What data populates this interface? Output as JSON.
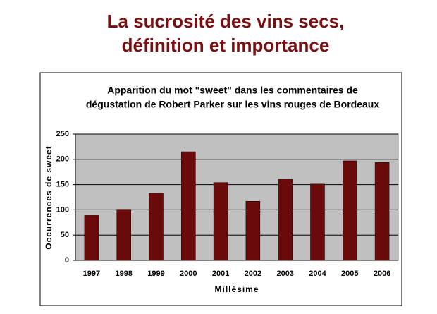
{
  "slide": {
    "title_lines": [
      "La sucrosité des vins secs,",
      "définition et importance"
    ]
  },
  "chart_data": {
    "type": "bar",
    "title": [
      "Apparition du mot \"sweet\" dans les commentaires de",
      "dégustation de Robert Parker sur les vins rouges de Bordeaux"
    ],
    "x_label": "Millésime",
    "y_label": "Occurrences de sweet",
    "categories": [
      "1997",
      "1998",
      "1999",
      "2000",
      "2001",
      "2002",
      "2003",
      "2004",
      "2005",
      "2006"
    ],
    "values": [
      90,
      101,
      133,
      215,
      154,
      117,
      161,
      151,
      197,
      194
    ],
    "color": "#6b0a0a",
    "ylim": [
      0,
      250
    ],
    "yticks": [
      0,
      50,
      100,
      150,
      200,
      250
    ],
    "grid": true
  }
}
